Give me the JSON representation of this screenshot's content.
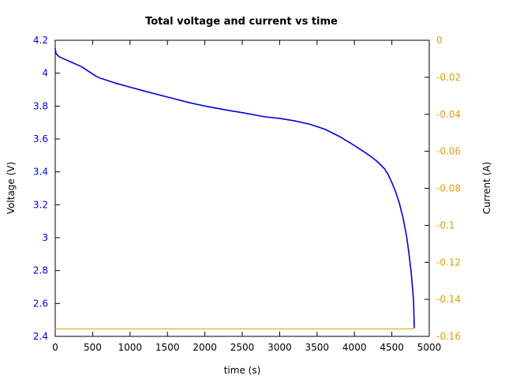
{
  "chart_data": {
    "type": "line",
    "title": "Total voltage and current vs time",
    "xlabel": "time (s)",
    "ylabel_left": "Voltage (V)",
    "ylabel_right": "Current (A)",
    "xlim": [
      0,
      5000
    ],
    "ylim_left": [
      2.4,
      4.2
    ],
    "ylim_right": [
      -0.16,
      0
    ],
    "x_ticks": [
      "0",
      "500",
      "1000",
      "1500",
      "2000",
      "2500",
      "3000",
      "3500",
      "4000",
      "4500",
      "5000"
    ],
    "y_left_ticks": [
      "2.4",
      "2.6",
      "2.8",
      "3",
      "3.2",
      "3.4",
      "3.6",
      "3.8",
      "4",
      "4.2"
    ],
    "y_right_ticks": [
      "-0.16",
      "-0.14",
      "-0.12",
      "-0.1",
      "-0.08",
      "-0.06",
      "-0.04",
      "-0.02",
      "0"
    ],
    "grid": false,
    "colors": {
      "voltage": "#0000e0",
      "current": "#e0a000",
      "left_axis": "#0000e0",
      "right_axis": "#e0a000"
    },
    "series": [
      {
        "axis": "left",
        "x": [
          0,
          10,
          50,
          100,
          200,
          350,
          450,
          500,
          550,
          600,
          700,
          800,
          1000,
          1200,
          1500,
          1800,
          2000,
          2300,
          2500,
          2800,
          3000,
          3200,
          3400,
          3600,
          3800,
          4000,
          4200,
          4300,
          4400,
          4450,
          4500,
          4550,
          4600,
          4650,
          4700,
          4730,
          4760,
          4790,
          4800
        ],
        "y": [
          4.15,
          4.12,
          4.1,
          4.09,
          4.07,
          4.04,
          4.01,
          3.995,
          3.98,
          3.97,
          3.955,
          3.94,
          3.915,
          3.89,
          3.855,
          3.82,
          3.8,
          3.775,
          3.76,
          3.735,
          3.725,
          3.71,
          3.69,
          3.66,
          3.615,
          3.56,
          3.5,
          3.465,
          3.42,
          3.385,
          3.335,
          3.28,
          3.21,
          3.12,
          3.0,
          2.9,
          2.78,
          2.62,
          2.45
        ]
      },
      {
        "axis": "right",
        "x": [
          0,
          4800
        ],
        "y": [
          -0.156,
          -0.156
        ]
      }
    ]
  }
}
